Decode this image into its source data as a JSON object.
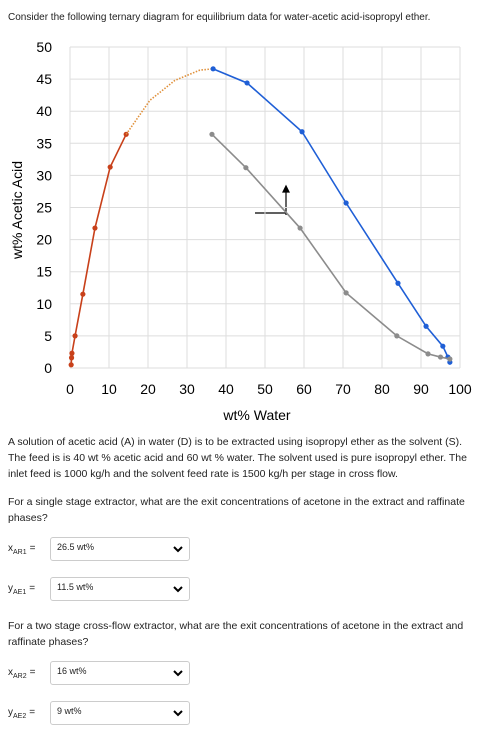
{
  "header": "Consider the following ternary diagram for equilibrium data for water-acetic acid-isopropyl ether.",
  "chart_data": {
    "type": "line",
    "xlabel": "wt% Water",
    "ylabel": "wt% Acetic Acid",
    "xlim": [
      0,
      100
    ],
    "ylim": [
      0,
      50
    ],
    "xticks": [
      0,
      10,
      20,
      30,
      40,
      50,
      60,
      70,
      80,
      90,
      100
    ],
    "yticks": [
      0,
      5,
      10,
      15,
      20,
      25,
      30,
      35,
      40,
      45,
      50
    ],
    "grid": true,
    "series": [
      {
        "color": "#c8401a",
        "line_style": "solid",
        "markers": true,
        "x": [
          0.3,
          0.4,
          0.5,
          1.3,
          3.3,
          6.4,
          10.3,
          14.4
        ],
        "values": [
          0.5,
          1.6,
          2.3,
          5,
          11.5,
          21.8,
          31.3,
          36.4
        ]
      },
      {
        "color": "#e0903a",
        "line_style": "dotted",
        "markers": false,
        "x": [
          14.4,
          20.5,
          26.9,
          33.3,
          36.7
        ],
        "values": [
          36.4,
          41.7,
          44.8,
          46.4,
          46.6
        ]
      },
      {
        "color": "#1f5fd6",
        "line_style": "solid",
        "markers": true,
        "x": [
          36.7,
          45.4,
          59.5,
          70.8,
          84.1,
          91.3,
          95.6,
          96.9,
          97.4
        ],
        "values": [
          46.6,
          44.4,
          36.8,
          25.7,
          13.2,
          6.5,
          3.4,
          1.7,
          0.9
        ]
      },
      {
        "color": "#8c8c8c",
        "line_style": "solid",
        "markers": true,
        "x": [
          36.4,
          45.1,
          59,
          70.8,
          83.8,
          91.8,
          95,
          97.4
        ],
        "values": [
          36.4,
          31.2,
          21.8,
          11.7,
          5,
          2.2,
          1.7,
          1.4
        ]
      }
    ]
  },
  "problem": "A solution of acetic acid (A) in water (D) is to be extracted using isopropyl ether as the solvent (S). The feed is is 40 wt % acetic acid and 60 wt % water. The solvent used is pure isopropyl ether. The inlet feed is 1000 kg/h and the solvent feed rate is 1500 kg/h per stage in cross flow.",
  "questions": [
    {
      "text": "For a single stage extractor, what are the exit concentrations of acetone in the extract and raffinate phases?",
      "answers": [
        {
          "var": "x",
          "sub": "AR1",
          "sign": "=",
          "value": "26.5 wt%"
        },
        {
          "var": "y",
          "sub": "AE1",
          "sign": "=",
          "value": "11.5 wt%"
        }
      ]
    },
    {
      "text": "For a two stage cross-flow extractor, what are the exit concentrations of acetone in the extract and raffinate phases?",
      "answers": [
        {
          "var": "x",
          "sub": "AR2",
          "sign": "=",
          "value": "16 wt%"
        },
        {
          "var": "y",
          "sub": "AE2",
          "sign": "=",
          "value": "9 wt%"
        }
      ]
    }
  ]
}
